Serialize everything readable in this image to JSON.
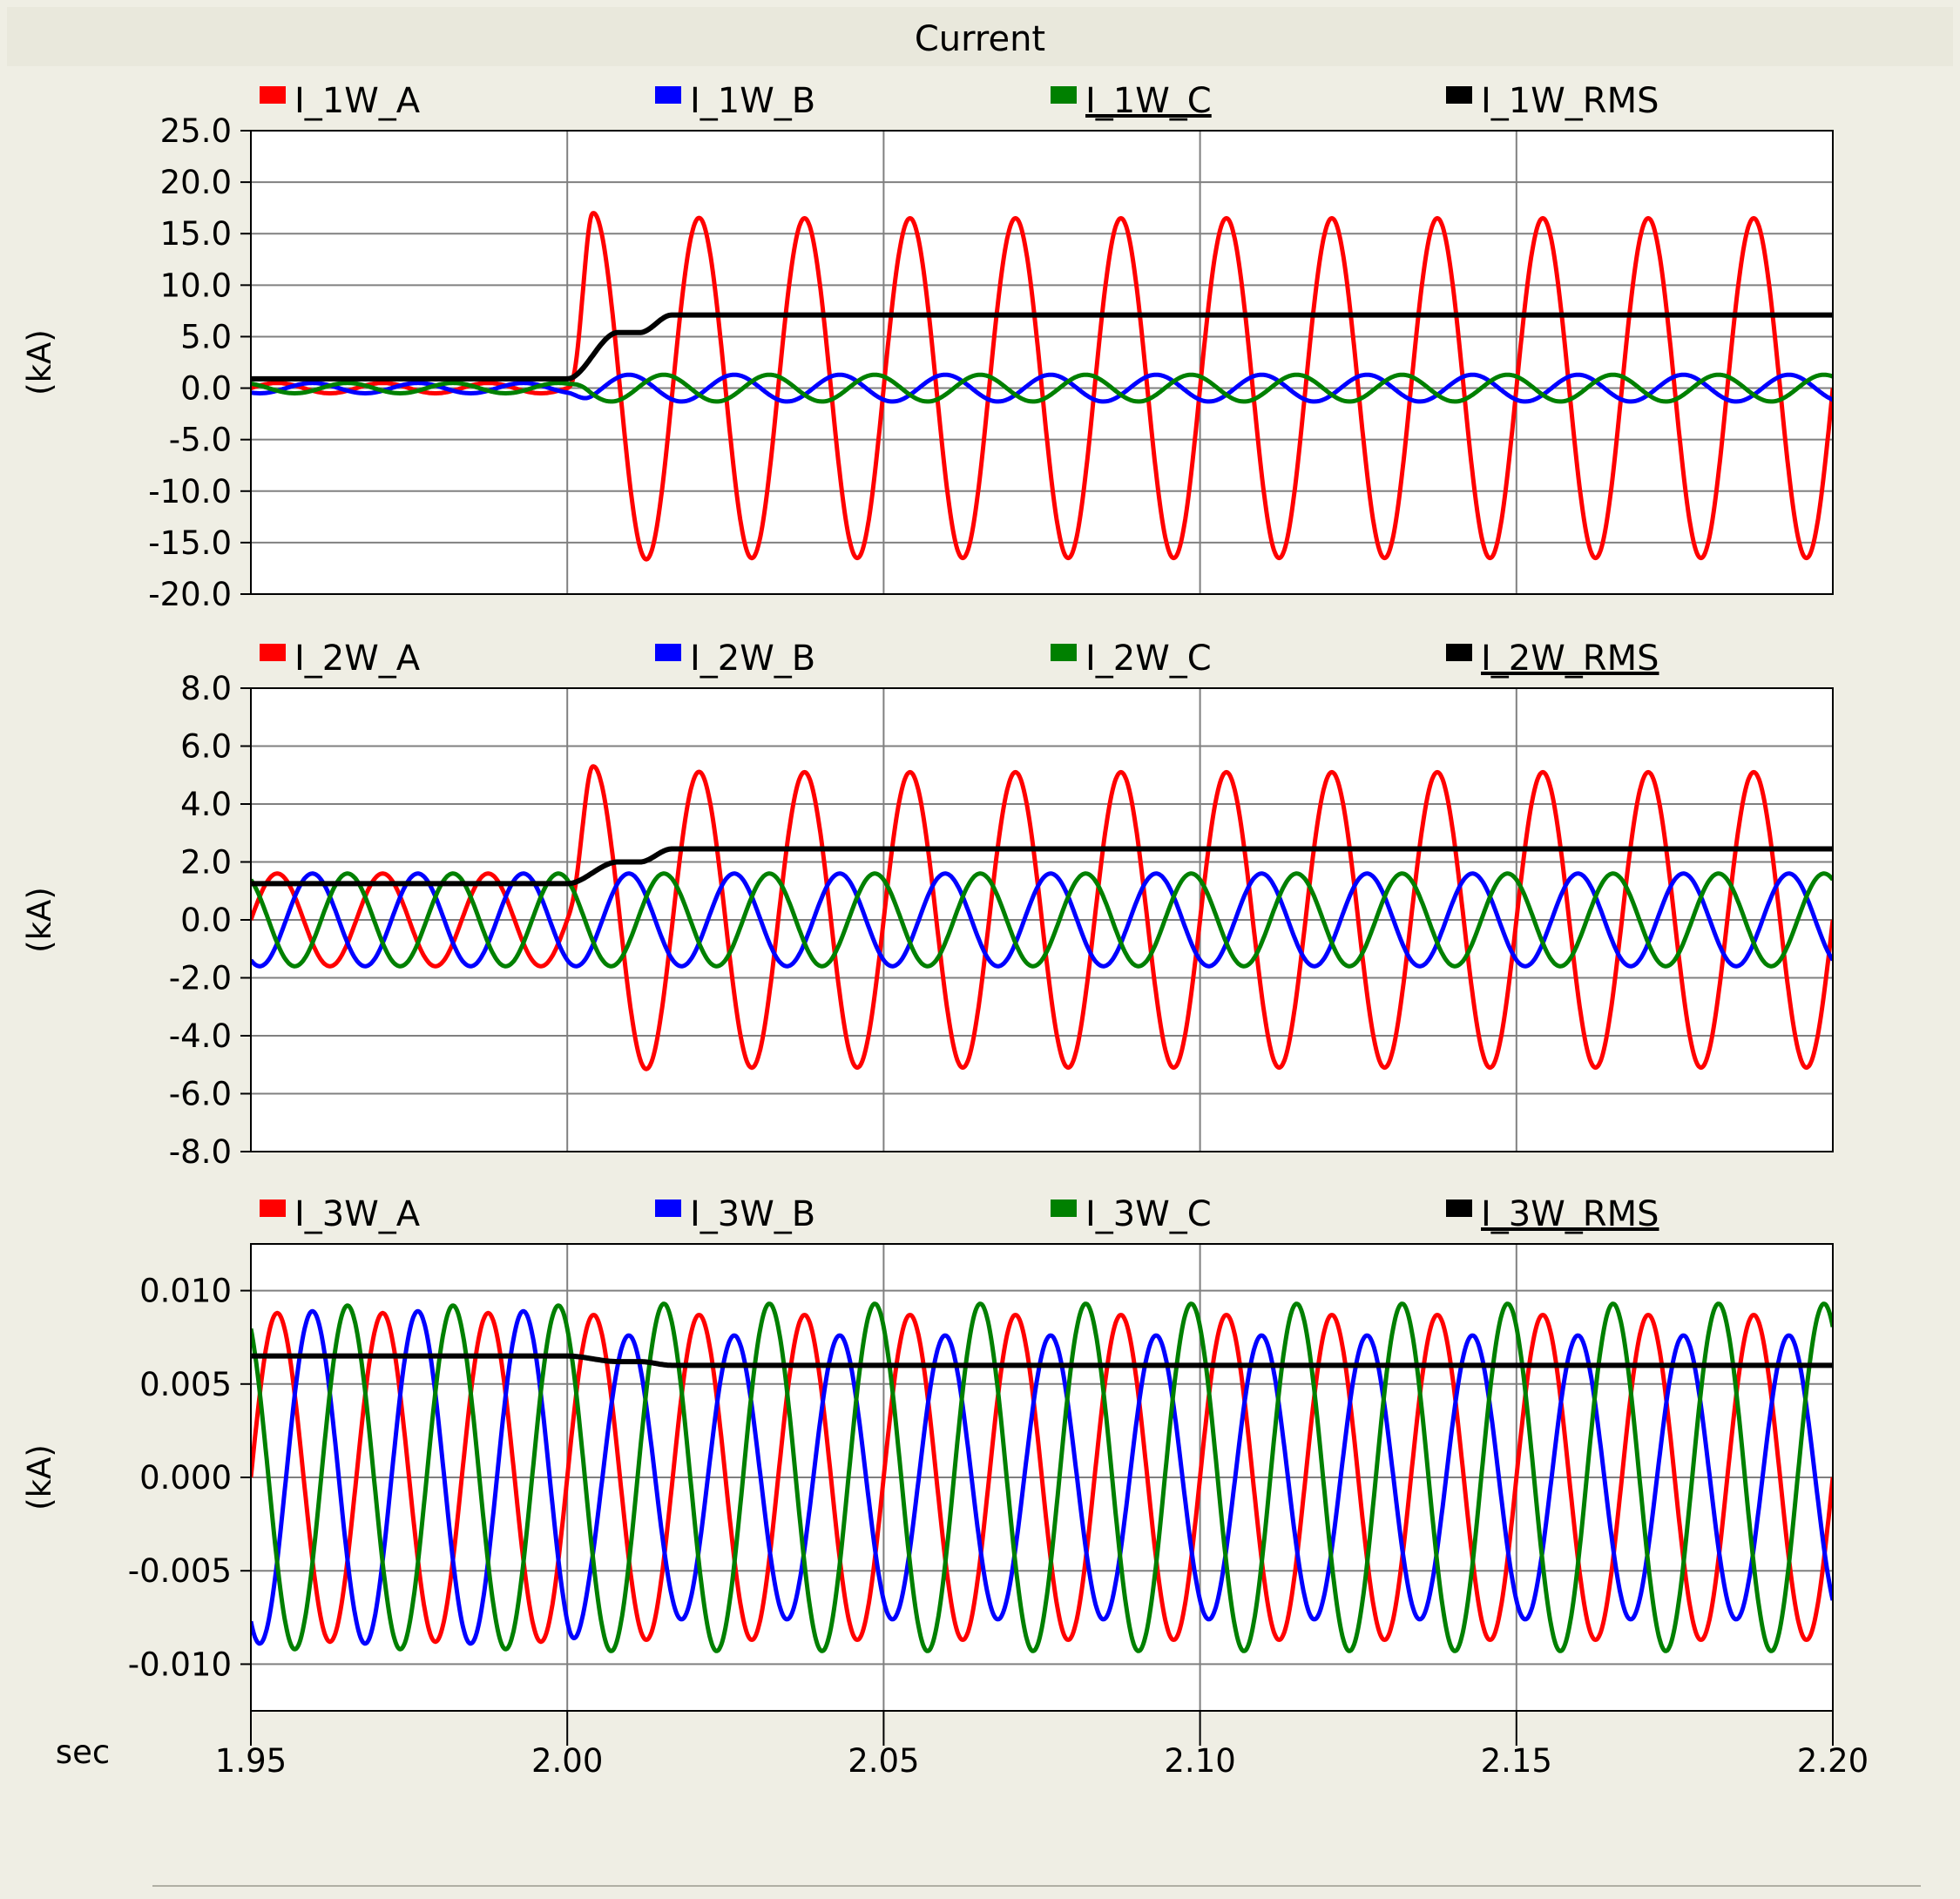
{
  "window": {
    "title": "Current"
  },
  "x_axis": {
    "label": "sec",
    "min": 1.95,
    "max": 2.2,
    "ticks": [
      "1.95",
      "2.00",
      "2.05",
      "2.10",
      "2.15",
      "2.20"
    ],
    "tick_values": [
      1.95,
      2.0,
      2.05,
      2.1,
      2.15,
      2.2
    ]
  },
  "colors": {
    "A": "#ff0000",
    "B": "#0000ff",
    "C": "#008000",
    "RMS": "#000000"
  },
  "chart_data": [
    {
      "type": "line",
      "title": "",
      "ylabel": "(kA)",
      "xlabel": "sec",
      "xlim": [
        1.95,
        2.2
      ],
      "ylim": [
        -20,
        25
      ],
      "yticks": [
        "25.0",
        "20.0",
        "15.0",
        "10.0",
        "5.0",
        "0.0",
        "-5.0",
        "-10.0",
        "-15.0",
        "-20.0"
      ],
      "ytick_values": [
        25,
        20,
        15,
        10,
        5,
        0,
        -5,
        -10,
        -15,
        -20
      ],
      "grid": true,
      "fault_time": 2.0,
      "frequency_hz": 60,
      "series": [
        {
          "name": "I_1W_A",
          "color": "#ff0000",
          "kind": "sine",
          "pre_amplitude": 0.5,
          "post_amplitude": 16.5,
          "first_peak": 17.5,
          "phase_deg": 0
        },
        {
          "name": "I_1W_B",
          "color": "#0000ff",
          "kind": "sine",
          "pre_amplitude": 0.5,
          "post_amplitude": 1.3,
          "phase_deg": -120
        },
        {
          "name": "I_1W_C",
          "color": "#008000",
          "kind": "sine",
          "pre_amplitude": 0.5,
          "post_amplitude": 1.3,
          "phase_deg": 120,
          "underlined": true
        },
        {
          "name": "I_1W_RMS",
          "color": "#000000",
          "kind": "rms",
          "pre_value": 0.9,
          "mid_value": 5.4,
          "post_value": 7.1
        }
      ]
    },
    {
      "type": "line",
      "title": "",
      "ylabel": "(kA)",
      "xlabel": "sec",
      "xlim": [
        1.95,
        2.2
      ],
      "ylim": [
        -8,
        8
      ],
      "yticks": [
        "8.0",
        "6.0",
        "4.0",
        "2.0",
        "0.0",
        "-2.0",
        "-4.0",
        "-6.0",
        "-8.0"
      ],
      "ytick_values": [
        8,
        6,
        4,
        2,
        0,
        -2,
        -4,
        -6,
        -8
      ],
      "grid": true,
      "fault_time": 2.0,
      "frequency_hz": 60,
      "series": [
        {
          "name": "I_2W_A",
          "color": "#ff0000",
          "kind": "sine",
          "pre_amplitude": 1.6,
          "post_amplitude": 5.1,
          "first_peak": 5.5,
          "phase_deg": 0
        },
        {
          "name": "I_2W_B",
          "color": "#0000ff",
          "kind": "sine",
          "pre_amplitude": 1.6,
          "post_amplitude": 1.6,
          "phase_deg": -120
        },
        {
          "name": "I_2W_C",
          "color": "#008000",
          "kind": "sine",
          "pre_amplitude": 1.6,
          "post_amplitude": 1.6,
          "phase_deg": 120
        },
        {
          "name": "I_2W_RMS",
          "color": "#000000",
          "kind": "rms",
          "pre_value": 1.25,
          "mid_value": 2.0,
          "post_value": 2.45,
          "underlined": true
        }
      ]
    },
    {
      "type": "line",
      "title": "",
      "ylabel": "(kA)",
      "xlabel": "sec",
      "xlim": [
        1.95,
        2.2
      ],
      "ylim": [
        -0.0125,
        0.0125
      ],
      "yticks": [
        "0.010",
        "0.005",
        "0.000",
        "-0.005",
        "-0.010"
      ],
      "ytick_values": [
        0.01,
        0.005,
        0.0,
        -0.005,
        -0.01
      ],
      "grid": true,
      "fault_time": 2.0,
      "frequency_hz": 60,
      "series": [
        {
          "name": "I_3W_A",
          "color": "#ff0000",
          "kind": "sine",
          "pre_amplitude": 0.0088,
          "post_amplitude": 0.0087,
          "phase_deg": 0
        },
        {
          "name": "I_3W_B",
          "color": "#0000ff",
          "kind": "sine",
          "pre_amplitude": 0.0089,
          "post_amplitude": 0.0076,
          "phase_deg": -120
        },
        {
          "name": "I_3W_C",
          "color": "#008000",
          "kind": "sine",
          "pre_amplitude": 0.0092,
          "post_amplitude": 0.0093,
          "phase_deg": 120
        },
        {
          "name": "I_3W_RMS",
          "color": "#000000",
          "kind": "rms",
          "pre_value": 0.0065,
          "mid_value": 0.0062,
          "post_value": 0.006,
          "underlined": true
        }
      ]
    }
  ]
}
